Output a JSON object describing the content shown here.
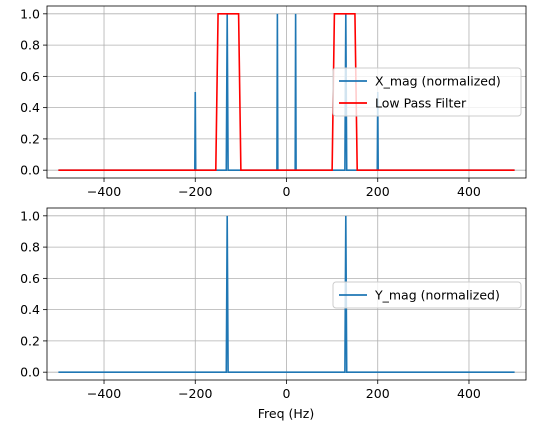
{
  "figure": {
    "xlabel": "Freq (Hz)"
  },
  "chart_data": [
    {
      "type": "line",
      "title": "",
      "xlabel": "",
      "ylabel": "",
      "xlim": [
        -525,
        525
      ],
      "ylim": [
        -0.05,
        1.05
      ],
      "xticks": [
        -400,
        -200,
        0,
        200,
        400
      ],
      "yticks": [
        0.0,
        0.2,
        0.4,
        0.6,
        0.8,
        1.0
      ],
      "xtick_labels": [
        "−400",
        "−200",
        "0",
        "200",
        "400"
      ],
      "ytick_labels": [
        "0.0",
        "0.2",
        "0.4",
        "0.6",
        "0.8",
        "1.0"
      ],
      "grid": true,
      "legend_position": "center-right",
      "series": [
        {
          "name": "X_mag (normalized)",
          "color": "#1f77b4",
          "x": [
            -500,
            -201,
            -200,
            -199,
            -132,
            -130,
            -128,
            -21,
            -20,
            -19,
            19,
            20,
            21,
            128,
            130,
            132,
            199,
            200,
            201,
            500
          ],
          "y": [
            0,
            0,
            0.5,
            0,
            0,
            1.0,
            0,
            0,
            1.0,
            0,
            0,
            1.0,
            0,
            0,
            1.0,
            0,
            0,
            0.5,
            0,
            0
          ]
        },
        {
          "name": "Low Pass Filter",
          "color": "#ff0000",
          "x": [
            -500,
            -155,
            -150,
            -105,
            -100,
            100,
            105,
            150,
            155,
            500
          ],
          "y": [
            0,
            0,
            1,
            1,
            0,
            0,
            1,
            1,
            0,
            0
          ]
        }
      ]
    },
    {
      "type": "line",
      "title": "",
      "xlabel": "Freq (Hz)",
      "ylabel": "",
      "xlim": [
        -525,
        525
      ],
      "ylim": [
        -0.05,
        1.05
      ],
      "xticks": [
        -400,
        -200,
        0,
        200,
        400
      ],
      "yticks": [
        0.0,
        0.2,
        0.4,
        0.6,
        0.8,
        1.0
      ],
      "xtick_labels": [
        "−400",
        "−200",
        "0",
        "200",
        "400"
      ],
      "ytick_labels": [
        "0.0",
        "0.2",
        "0.4",
        "0.6",
        "0.8",
        "1.0"
      ],
      "grid": true,
      "legend_position": "center-right",
      "series": [
        {
          "name": "Y_mag (normalized)",
          "color": "#1f77b4",
          "x": [
            -500,
            -132,
            -130,
            -128,
            128,
            130,
            132,
            500
          ],
          "y": [
            0,
            0,
            1.0,
            0,
            0,
            1.0,
            0,
            0
          ]
        }
      ]
    }
  ]
}
